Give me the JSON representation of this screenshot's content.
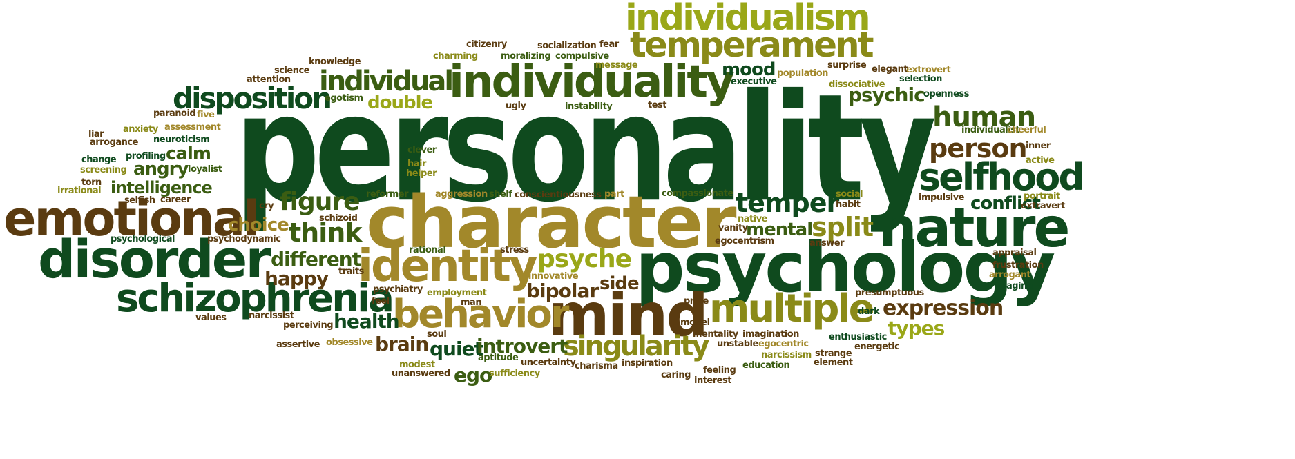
{
  "title": "personality",
  "palette": {
    "dark_green": "#0f4a1e",
    "mid_green": "#3b5d12",
    "olive": "#8a8a18",
    "lime": "#9aa718",
    "gold": "#a2882a",
    "brown": "#5a3b10"
  },
  "words": {
    "personality": "personality",
    "character": "character",
    "psychology": "psychology",
    "individuality": "individuality",
    "individualism": "individualism",
    "temperament": "temperament",
    "emotional": "emotional",
    "disorder": "disorder",
    "schizophrenia": "schizophrenia",
    "nature": "nature",
    "mind": "mind",
    "identity": "identity",
    "behavior": "behavior",
    "multiple": "multiple",
    "selfhood": "selfhood",
    "disposition": "disposition",
    "individual": "individual",
    "singularity": "singularity",
    "human": "human",
    "person": "person",
    "temper": "temper",
    "expression": "expression",
    "figure": "figure",
    "think": "think",
    "psyche": "psyche",
    "split": "split",
    "mood": "mood",
    "psychic": "psychic",
    "intelligence": "intelligence",
    "calm": "calm",
    "angry": "angry",
    "choice": "choice",
    "different": "different",
    "happy": "happy",
    "bipolar": "bipolar",
    "side": "side",
    "mental": "mental",
    "conflict": "conflict",
    "health": "health",
    "brain": "brain",
    "quiet": "quiet",
    "introvert": "introvert",
    "ego": "ego",
    "types": "types",
    "double": "double",
    "citizenry": "citizenry",
    "socialization": "socialization",
    "fear": "fear",
    "charming": "charming",
    "moralizing": "moralizing",
    "compulsive": "compulsive",
    "knowledge": "knowledge",
    "science": "science",
    "attention": "attention",
    "message": "message",
    "population": "population",
    "surprise": "surprise",
    "elegant": "elegant",
    "extrovert": "extrovert",
    "executive": "executive",
    "selection": "selection",
    "dissociative": "dissociative",
    "openness": "openness",
    "egotism": "egotism",
    "ugly": "ugly",
    "instability": "instability",
    "test": "test",
    "paranoid": "paranoid",
    "five": "five",
    "liar": "liar",
    "anxiety": "anxiety",
    "assessment": "assessment",
    "arrogance": "arrogance",
    "neuroticism": "neuroticism",
    "change": "change",
    "profiling": "profiling",
    "screening": "screening",
    "loyalist": "loyalist",
    "torn": "torn",
    "irrational": "irrational",
    "selfish": "selfish",
    "career": "career",
    "individualist": "individualist",
    "cheerful": "cheerful",
    "inner": "inner",
    "active": "active",
    "portrait": "portrait",
    "impulsive": "impulsive",
    "extravert": "extravert",
    "clever": "clever",
    "hair": "hair",
    "helper": "helper",
    "reformer": "reformer",
    "aggression": "aggression",
    "shelf": "shelf",
    "conscientiousness": "conscientiousness",
    "part": "part",
    "compassionate": "compassionate",
    "social": "social",
    "habit": "habit",
    "cry": "cry",
    "schizoid": "schizoid",
    "native": "native",
    "vanity": "vanity",
    "psychological": "psychological",
    "psychodynamic": "psychodynamic",
    "egocentrism": "egocentrism",
    "answer": "answer",
    "rational": "rational",
    "stress": "stress",
    "appraisal": "appraisal",
    "frustration": "frustration",
    "arrogant": "arrogant",
    "traits": "traits",
    "innovative": "innovative",
    "imagine": "imagine",
    "psychiatry": "psychiatry",
    "employment": "employment",
    "presumptuous": "presumptuous",
    "feel": "feel",
    "man": "man",
    "pride": "pride",
    "values": "values",
    "narcissist": "narcissist",
    "perceiving": "perceiving",
    "dark": "dark",
    "model": "model",
    "soul": "soul",
    "mentality": "mentality",
    "imagination": "imagination",
    "enthusiastic": "enthusiastic",
    "assertive": "assertive",
    "obsessive": "obsessive",
    "unstable": "unstable",
    "egocentric": "egocentric",
    "energetic": "energetic",
    "aptitude": "aptitude",
    "uncertainty": "uncertainty",
    "narcissism": "narcissism",
    "strange": "strange",
    "modest": "modest",
    "charisma": "charisma",
    "inspiration": "inspiration",
    "education": "education",
    "element": "element",
    "feeling": "feeling",
    "unanswered": "unanswered",
    "sufficiency": "sufficiency",
    "caring": "caring",
    "interest": "interest"
  }
}
